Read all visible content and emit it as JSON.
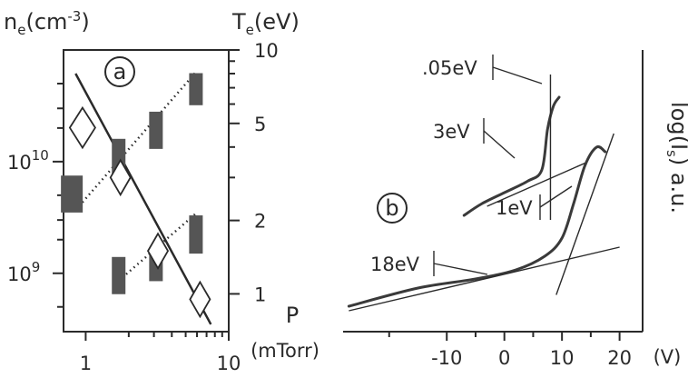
{
  "chart_data": [
    {
      "type": "scatter",
      "panel_label": "a",
      "xlabel": "P",
      "xunit": "(mTorr)",
      "x_scale": "log",
      "xlim": [
        0.7,
        10
      ],
      "x_ticks": [
        1,
        10
      ],
      "left_axis": {
        "label_main": "n",
        "label_sub": "e",
        "label_unit": "(cm",
        "label_exp": "-3",
        "label_close": ")",
        "scale": "log",
        "lim": [
          300000000.0,
          100000000000.0
        ],
        "ticks": [
          {
            "base": "10",
            "exp": "10",
            "value": 10000000000.0
          },
          {
            "base": "10",
            "exp": "9",
            "value": 1000000000.0
          }
        ]
      },
      "right_axis": {
        "label_main": "T",
        "label_sub": "e",
        "label_unit": "(eV)",
        "scale": "log",
        "lim": [
          0.7,
          10
        ],
        "ticks": [
          "10",
          "5",
          "2",
          "1"
        ]
      },
      "density_bars": [
        {
          "x": 0.8,
          "y_low": 3500000000.0,
          "y_high": 7500000000.0
        },
        {
          "x": 1.7,
          "y_low": 7000000000.0,
          "y_high": 16000000000.0
        },
        {
          "x": 3.1,
          "y_low": 13000000000.0,
          "y_high": 28000000000.0
        },
        {
          "x": 5.9,
          "y_low": 32000000000.0,
          "y_high": 62000000000.0
        },
        {
          "x": 1.7,
          "y_low": 650000000.0,
          "y_high": 1400000000.0
        },
        {
          "x": 3.1,
          "y_low": 850000000.0,
          "y_high": 1700000000.0
        },
        {
          "x": 5.9,
          "y_low": 1500000000.0,
          "y_high": 3300000000.0
        }
      ],
      "temperature_diamonds": [
        {
          "x": 0.95,
          "y": 4.8
        },
        {
          "x": 1.75,
          "y": 3.0
        },
        {
          "x": 3.2,
          "y": 1.5
        },
        {
          "x": 6.3,
          "y": 0.95
        }
      ],
      "fit_lines": [
        {
          "style": "solid",
          "points": [
            [
              0.85,
              8.0
            ],
            [
              7.5,
              0.75
            ]
          ]
        },
        {
          "style": "dotted",
          "points": [
            [
              0.9,
              4000000000.0
            ],
            [
              6,
              65000000000.0
            ]
          ]
        },
        {
          "style": "dotted",
          "points": [
            [
              1.6,
              800000000.0
            ],
            [
              6,
              3500000000.0
            ]
          ]
        }
      ]
    },
    {
      "type": "line",
      "panel_label": "b",
      "ylabel": "log(I",
      "ylabel_sub": "s",
      "ylabel_close": ")  a.u.",
      "xunit": "(V)",
      "x_ticks": [
        "-10",
        "0",
        "10",
        "20"
      ],
      "x_tick_values": [
        -10,
        0,
        10,
        20
      ],
      "xlim": [
        -28,
        24
      ],
      "series": [
        {
          "annotations": [
            {
              "text": ".05eV",
              "x": 8,
              "y": 0.85
            },
            {
              "text": "3eV",
              "x": 4,
              "y": 0.64
            }
          ],
          "points": [
            [
              -7,
              0.4
            ],
            [
              -4,
              0.45
            ],
            [
              0,
              0.5
            ],
            [
              4,
              0.55
            ],
            [
              6.5,
              0.6
            ],
            [
              7.5,
              0.78
            ],
            [
              8.5,
              0.88
            ],
            [
              9.5,
              0.92
            ]
          ]
        },
        {
          "annotations": [
            {
              "text": "1eV",
              "x": 11.5,
              "y": 0.46
            },
            {
              "text": "18eV",
              "x": -2.5,
              "y": 0.2
            }
          ],
          "points": [
            [
              -27,
              0.0
            ],
            [
              -15,
              0.08
            ],
            [
              -5,
              0.12
            ],
            [
              2,
              0.16
            ],
            [
              7,
              0.22
            ],
            [
              10,
              0.3
            ],
            [
              12,
              0.45
            ],
            [
              14,
              0.62
            ],
            [
              16,
              0.7
            ],
            [
              17.5,
              0.68
            ]
          ]
        }
      ]
    }
  ]
}
